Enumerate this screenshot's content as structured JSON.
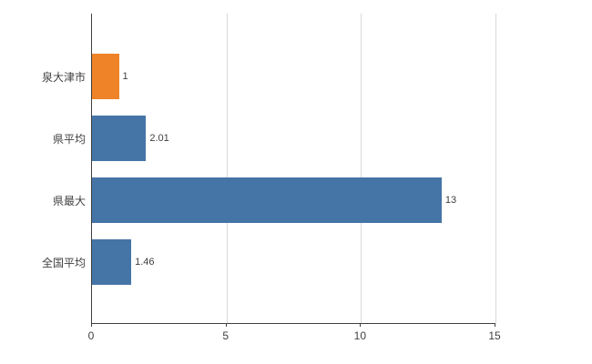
{
  "chart_data": {
    "type": "bar",
    "orientation": "horizontal",
    "title": "",
    "xlabel": "",
    "ylabel": "",
    "categories": [
      "泉大津市",
      "県平均",
      "県最大",
      "全国平均"
    ],
    "values": [
      1,
      2.01,
      13,
      1.46
    ],
    "value_labels": [
      "1",
      "2.01",
      "13",
      "1.46"
    ],
    "bar_colors": [
      "#ee8327",
      "#4574a7",
      "#4574a7",
      "#4574a7"
    ],
    "xlim": [
      0,
      15
    ],
    "x_ticks": [
      0,
      5,
      10,
      15
    ],
    "grid": true,
    "legend": "none",
    "background_color": "#ffffff",
    "axis_color": "#404040",
    "gridline_color": "#d9d9d9"
  }
}
